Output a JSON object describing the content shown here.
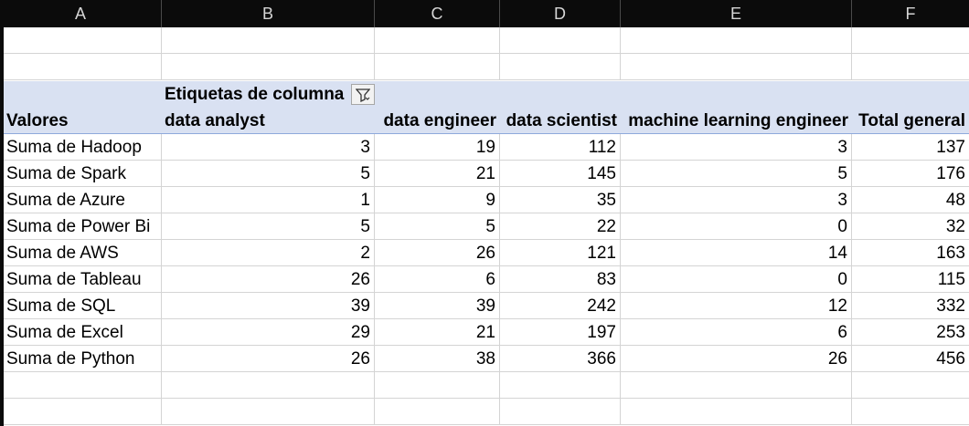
{
  "columns": [
    "A",
    "B",
    "C",
    "D",
    "E",
    "F"
  ],
  "pivot": {
    "column_labels_caption": "Etiquetas de columna",
    "values_caption": "Valores",
    "headers": [
      "data analyst",
      "data engineer",
      "data scientist",
      "machine learning engineer",
      "Total general"
    ],
    "rows": [
      {
        "label": "Suma de Hadoop",
        "values": [
          "3",
          "19",
          "112",
          "3",
          "137"
        ]
      },
      {
        "label": "Suma de Spark",
        "values": [
          "5",
          "21",
          "145",
          "5",
          "176"
        ]
      },
      {
        "label": "Suma de Azure",
        "values": [
          "1",
          "9",
          "35",
          "3",
          "48"
        ]
      },
      {
        "label": "Suma de Power Bi",
        "values": [
          "5",
          "5",
          "22",
          "0",
          "32"
        ]
      },
      {
        "label": "Suma de AWS",
        "values": [
          "2",
          "26",
          "121",
          "14",
          "163"
        ]
      },
      {
        "label": "Suma de Tableau",
        "values": [
          "26",
          "6",
          "83",
          "0",
          "115"
        ]
      },
      {
        "label": "Suma de SQL",
        "values": [
          "39",
          "39",
          "242",
          "12",
          "332"
        ]
      },
      {
        "label": "Suma de Excel",
        "values": [
          "29",
          "21",
          "197",
          "6",
          "253"
        ]
      },
      {
        "label": "Suma de Python",
        "values": [
          "26",
          "38",
          "366",
          "26",
          "456"
        ]
      }
    ]
  },
  "filter_icon": "filter-dropdown-icon",
  "colors": {
    "header_band": "#d9e1f2",
    "column_header_bg": "#0b0b0b",
    "gridline": "#d4d4d4"
  }
}
